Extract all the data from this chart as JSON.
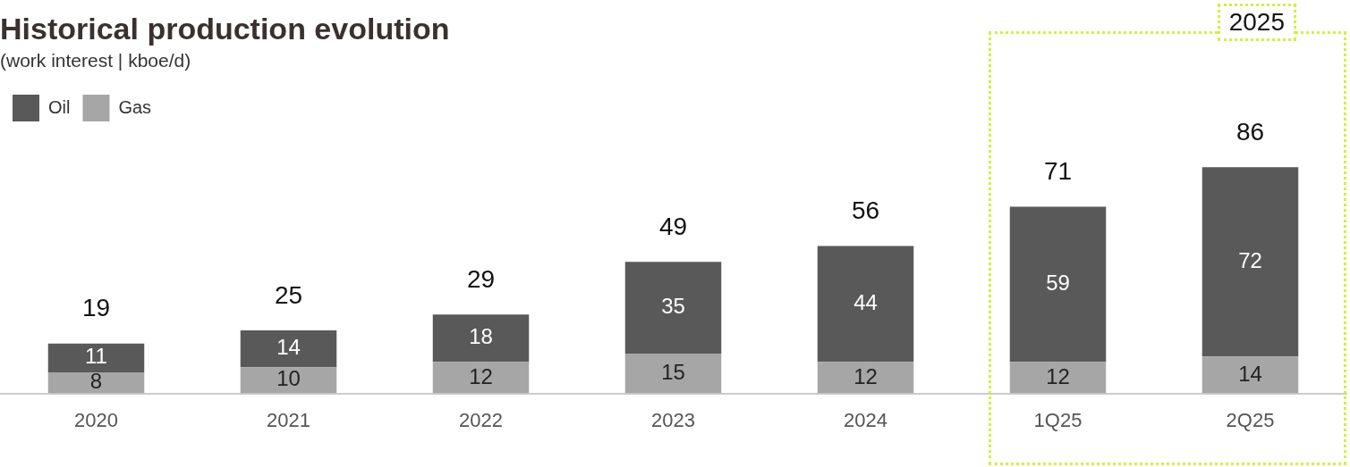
{
  "chart_data": {
    "type": "bar",
    "title": "Historical production evolution",
    "subtitle": "(work interest | kboe/d)",
    "categories": [
      "2020",
      "2021",
      "2022",
      "2023",
      "2024",
      "1Q25",
      "2Q25"
    ],
    "stacked": true,
    "data_labels": true,
    "grid": false,
    "legend": "top left",
    "tick_labels": "x",
    "series": [
      {
        "name": "Gas",
        "color": "#a6a6a6",
        "values": [
          8,
          10,
          12,
          15,
          12,
          12,
          14
        ]
      },
      {
        "name": "Oil",
        "color": "#595959",
        "values": [
          11,
          14,
          18,
          35,
          44,
          59,
          72
        ]
      }
    ],
    "totals": [
      "19",
      "25",
      "29",
      "49",
      "56",
      "71",
      "86"
    ],
    "annotations": [
      "2025"
    ]
  }
}
